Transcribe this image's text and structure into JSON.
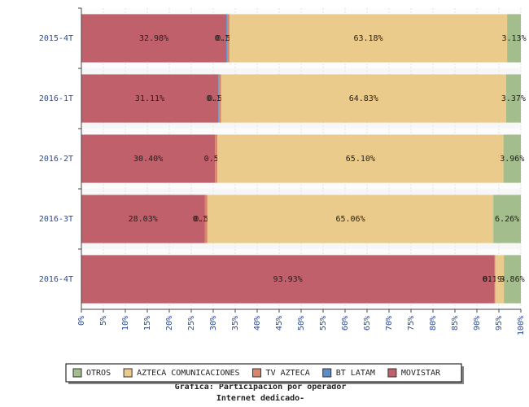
{
  "chart_data": {
    "type": "stacked-hbar",
    "title": "Gráfica: Participación por operador",
    "subtitle": "Internet dedicado-",
    "categories": [
      "2015-4T",
      "2016-1T",
      "2016-2T",
      "2016-3T",
      "2016-4T"
    ],
    "series": [
      {
        "name": "OTROS",
        "color": "#a3bd8c",
        "values": [
          3.13,
          3.37,
          3.96,
          6.26,
          3.86
        ],
        "value_labels": [
          "3.13%",
          "3.37%",
          "3.96%",
          "6.26%",
          "3.86%"
        ]
      },
      {
        "name": "AZTECA COMUNICACIONES",
        "color": "#ebcb8b",
        "values": [
          63.18,
          64.83,
          65.1,
          65.06,
          1.94
        ],
        "value_labels": [
          "63.18%",
          "64.83%",
          "65.10%",
          "65.06%",
          "1.94%"
        ]
      },
      {
        "name": "TV AZTECA",
        "color": "#d9866a",
        "values": [
          0.54,
          0.54,
          0.54,
          0.53,
          0.12
        ],
        "value_labels": [
          "0.54%",
          "0.54%",
          "0.54%",
          "0.53%",
          "0.12%"
        ]
      },
      {
        "name": "BT LATAM",
        "color": "#5b8fc7",
        "values": [
          0.17,
          0.15,
          null,
          0.12,
          0.15
        ],
        "value_labels": [
          "0.17%",
          "0.15%",
          null,
          "0.12%",
          "0.15%"
        ]
      },
      {
        "name": "MOVISTAR",
        "color": "#c0606a",
        "values": [
          32.98,
          31.11,
          30.4,
          28.03,
          93.93
        ],
        "value_labels": [
          "32.98%",
          "31.11%",
          "30.40%",
          "28.03%",
          "93.93%"
        ]
      }
    ],
    "xlim": [
      0,
      100
    ],
    "xticks": [
      {
        "value": 0,
        "label": "0%"
      },
      {
        "value": 5,
        "label": "5%"
      },
      {
        "value": 10,
        "label": "10%"
      },
      {
        "value": 15,
        "label": "15%"
      },
      {
        "value": 20,
        "label": "20%"
      },
      {
        "value": 25,
        "label": "25%"
      },
      {
        "value": 30,
        "label": "30%"
      },
      {
        "value": 35,
        "label": "35%"
      },
      {
        "value": 40,
        "label": "40%"
      },
      {
        "value": 45,
        "label": "45%"
      },
      {
        "value": 50,
        "label": "50%"
      },
      {
        "value": 55,
        "label": "55%"
      },
      {
        "value": 60,
        "label": "60%"
      },
      {
        "value": 65,
        "label": "65%"
      },
      {
        "value": 70,
        "label": "70%"
      },
      {
        "value": 75,
        "label": "75%"
      },
      {
        "value": 80,
        "label": "80%"
      },
      {
        "value": 85,
        "label": "85%"
      },
      {
        "value": 90,
        "label": "90%"
      },
      {
        "value": 95,
        "label": "95%"
      },
      {
        "value": 100,
        "label": "100%"
      }
    ],
    "grid": true,
    "legend": "bottom"
  }
}
